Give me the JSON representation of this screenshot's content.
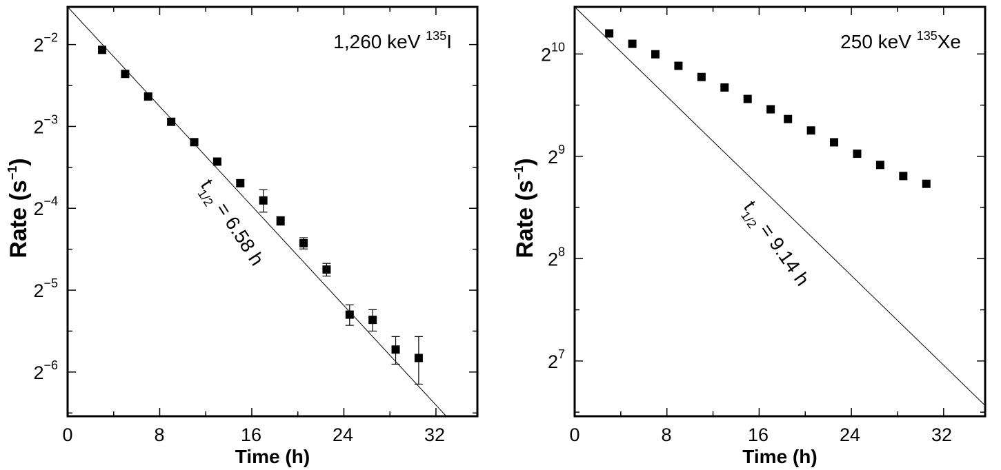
{
  "chart_data": [
    {
      "type": "scatter",
      "annotation": {
        "prefix": "1,260 keV ",
        "iso_mass": "135",
        "element": "I"
      },
      "fit_label": {
        "t": "t",
        "sub": "1/2",
        "value": " = 6.58 h"
      },
      "xlabel": "Time (h)",
      "ylabel": {
        "main": "Rate (s",
        "exp": "−1",
        "close": ")"
      },
      "xlim": [
        0,
        35.6
      ],
      "ylim_log2": [
        -6.54,
        -1.54
      ],
      "y_scale": "log2",
      "x_ticks": [
        "0",
        "8",
        "16",
        "24",
        "32"
      ],
      "y_ticks": [
        {
          "base": "2",
          "exp": "−2",
          "log2": -2
        },
        {
          "base": "2",
          "exp": "−3",
          "log2": -3
        },
        {
          "base": "2",
          "exp": "−4",
          "log2": -4
        },
        {
          "base": "2",
          "exp": "−5",
          "log2": -5
        },
        {
          "base": "2",
          "exp": "−6",
          "log2": -6
        }
      ],
      "fit": {
        "half_life_h": 6.58,
        "x_range": [
          0,
          33
        ],
        "y_at_0_log2": -1.54,
        "y_at_33_log2": -6.54
      },
      "points": [
        {
          "x": 3.0,
          "y": 0.239,
          "err": 0.003
        },
        {
          "x": 5.0,
          "y": 0.195,
          "err": 0.003
        },
        {
          "x": 7.0,
          "y": 0.161,
          "err": 0.003
        },
        {
          "x": 9.0,
          "y": 0.13,
          "err": 0.003
        },
        {
          "x": 11.0,
          "y": 0.1094,
          "err": 0.002
        },
        {
          "x": 13.0,
          "y": 0.0928,
          "err": 0.0025
        },
        {
          "x": 15.0,
          "y": 0.0773,
          "err": 0.0022
        },
        {
          "x": 17.0,
          "y": 0.0668,
          "err": 0.0063
        },
        {
          "x": 18.5,
          "y": 0.0562,
          "err": 0.002
        },
        {
          "x": 20.5,
          "y": 0.0465,
          "err": 0.0022
        },
        {
          "x": 22.5,
          "y": 0.0372,
          "err": 0.002
        },
        {
          "x": 24.5,
          "y": 0.0254,
          "err": 0.0022
        },
        {
          "x": 26.5,
          "y": 0.0243,
          "err": 0.0022
        },
        {
          "x": 28.5,
          "y": 0.0189,
          "err": 0.0022
        },
        {
          "x": 30.5,
          "y": 0.0176,
          "err": 0.0035
        }
      ]
    },
    {
      "type": "scatter",
      "annotation": {
        "prefix": "250 keV ",
        "iso_mass": "135",
        "element": "Xe"
      },
      "fit_label": {
        "t": "t",
        "sub": "1/2",
        "value": " = 9.14 h"
      },
      "xlabel": "Time (h)",
      "ylabel": {
        "main": "Rate (s",
        "exp": "−1",
        "close": ")"
      },
      "xlim": [
        0,
        35.6
      ],
      "ylim_log2": [
        6.46,
        10.46
      ],
      "y_scale": "log2",
      "x_ticks": [
        "0",
        "8",
        "16",
        "24",
        "32"
      ],
      "y_ticks": [
        {
          "base": "2",
          "exp": "10",
          "log2": 10
        },
        {
          "base": "2",
          "exp": "9",
          "log2": 9
        },
        {
          "base": "2",
          "exp": "8",
          "log2": 8
        },
        {
          "base": "2",
          "exp": "7",
          "log2": 7
        }
      ],
      "fit": {
        "half_life_h": 9.14,
        "x_range": [
          0,
          35.6
        ],
        "y_at_0_log2": 10.46,
        "y_at_35.6_log2": 6.56
      },
      "points": [
        {
          "x": 3.0,
          "y": 1177
        },
        {
          "x": 5.0,
          "y": 1097
        },
        {
          "x": 7.0,
          "y": 1022
        },
        {
          "x": 9.0,
          "y": 945
        },
        {
          "x": 11.0,
          "y": 876
        },
        {
          "x": 13.0,
          "y": 816
        },
        {
          "x": 15.0,
          "y": 755
        },
        {
          "x": 17.0,
          "y": 704
        },
        {
          "x": 18.5,
          "y": 659
        },
        {
          "x": 20.5,
          "y": 610
        },
        {
          "x": 22.5,
          "y": 563
        },
        {
          "x": 24.5,
          "y": 521
        },
        {
          "x": 26.5,
          "y": 483
        },
        {
          "x": 28.5,
          "y": 448
        },
        {
          "x": 30.5,
          "y": 425
        }
      ]
    }
  ]
}
